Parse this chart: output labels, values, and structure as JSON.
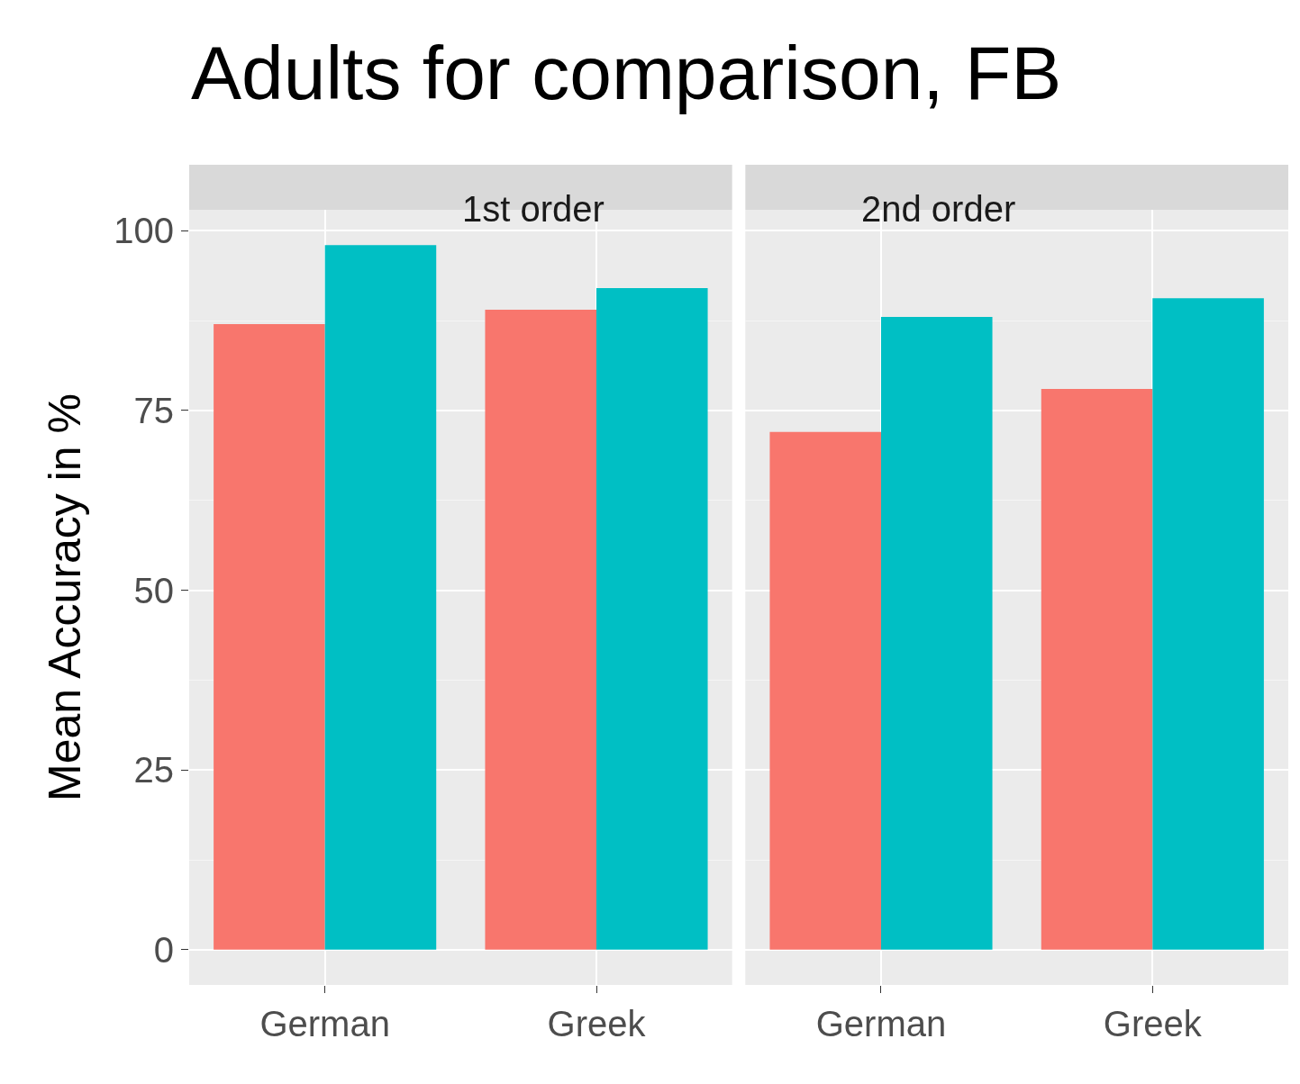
{
  "chart_data": [
    {
      "type": "bar",
      "title": "Adults for comparison, FB",
      "subtitle": "1st order",
      "ylabel": "Mean Accuracy in %",
      "categories": [
        "German",
        "Greek"
      ],
      "series": [
        {
          "color": "#f8766d",
          "values": [
            87,
            89
          ]
        },
        {
          "color": "#00bfc4",
          "values": [
            98,
            92
          ]
        }
      ],
      "ylim": [
        -4.9,
        102.9
      ],
      "yticks": [
        0,
        25,
        50,
        75,
        100
      ],
      "grid": true
    },
    {
      "type": "bar",
      "subtitle": "2nd order",
      "categories": [
        "German",
        "Greek"
      ],
      "series": [
        {
          "color": "#f8766d",
          "values": [
            72,
            78
          ]
        },
        {
          "color": "#00bfc4",
          "values": [
            88,
            90.6
          ]
        }
      ],
      "ylim": [
        -4.9,
        102.9
      ],
      "yticks": [
        0,
        25,
        50,
        75,
        100
      ],
      "grid": true,
      "tick_labels": "x"
    }
  ]
}
